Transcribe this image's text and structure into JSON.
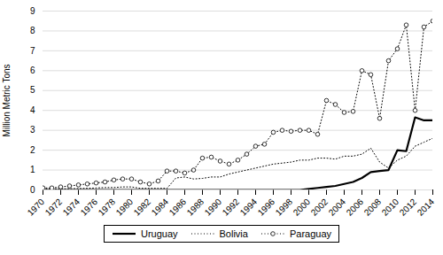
{
  "chart_data": {
    "type": "line",
    "ylabel": "Million Metric Tons",
    "x": [
      1970,
      1971,
      1972,
      1973,
      1974,
      1975,
      1976,
      1977,
      1978,
      1979,
      1980,
      1981,
      1982,
      1983,
      1984,
      1985,
      1986,
      1987,
      1988,
      1989,
      1990,
      1991,
      1992,
      1993,
      1994,
      1995,
      1996,
      1997,
      1998,
      1999,
      2000,
      2001,
      2002,
      2003,
      2004,
      2005,
      2006,
      2007,
      2008,
      2009,
      2010,
      2011,
      2012,
      2013,
      2014
    ],
    "series": [
      {
        "name": "Uruguay",
        "color": "#000000",
        "line_style": "solid",
        "marker": "none",
        "values": [
          0.0,
          0.0,
          0.0,
          0.0,
          0.0,
          0.0,
          0.0,
          0.0,
          0.0,
          0.0,
          0.0,
          0.0,
          0.0,
          0.0,
          0.0,
          0.0,
          0.0,
          0.0,
          0.0,
          0.0,
          0.0,
          0.0,
          0.0,
          0.0,
          0.0,
          0.0,
          0.0,
          0.0,
          0.0,
          0.0,
          0.05,
          0.1,
          0.15,
          0.2,
          0.3,
          0.4,
          0.6,
          0.9,
          0.95,
          1.0,
          2.0,
          1.95,
          3.65,
          3.5,
          3.5
        ]
      },
      {
        "name": "Bolivia",
        "color": "#000000",
        "line_style": "dotted",
        "marker": "none",
        "values": [
          0.05,
          0.05,
          0.05,
          0.06,
          0.07,
          0.08,
          0.1,
          0.12,
          0.12,
          0.15,
          0.15,
          0.08,
          0.08,
          0.08,
          0.08,
          0.6,
          0.65,
          0.55,
          0.58,
          0.65,
          0.65,
          0.8,
          0.9,
          1.0,
          1.1,
          1.2,
          1.3,
          1.35,
          1.4,
          1.5,
          1.5,
          1.6,
          1.6,
          1.55,
          1.7,
          1.7,
          1.8,
          2.1,
          1.4,
          1.1,
          1.5,
          1.7,
          2.2,
          2.4,
          2.6
        ]
      },
      {
        "name": "Paraguay",
        "color": "#000000",
        "line_style": "dotted",
        "marker": "circle",
        "values": [
          0.1,
          0.1,
          0.15,
          0.2,
          0.25,
          0.3,
          0.35,
          0.4,
          0.5,
          0.55,
          0.55,
          0.4,
          0.3,
          0.45,
          0.95,
          0.95,
          0.85,
          1.0,
          1.6,
          1.65,
          1.45,
          1.3,
          1.5,
          1.8,
          2.2,
          2.3,
          2.9,
          3.0,
          2.95,
          3.0,
          3.0,
          2.8,
          4.5,
          4.3,
          3.9,
          3.95,
          6.0,
          5.8,
          3.6,
          6.5,
          7.1,
          8.3,
          4.0,
          8.2,
          8.5
        ]
      }
    ],
    "xlim": [
      1970,
      2014
    ],
    "xticks": [
      1970,
      1972,
      1974,
      1976,
      1978,
      1980,
      1982,
      1984,
      1986,
      1988,
      1990,
      1992,
      1994,
      1996,
      1998,
      2000,
      2002,
      2004,
      2006,
      2008,
      2010,
      2012,
      2014
    ],
    "ylim": [
      0,
      9
    ],
    "yticks": [
      0,
      1,
      2,
      3,
      4,
      5,
      6,
      7,
      8,
      9
    ],
    "grid": true,
    "legend": "bottom"
  }
}
